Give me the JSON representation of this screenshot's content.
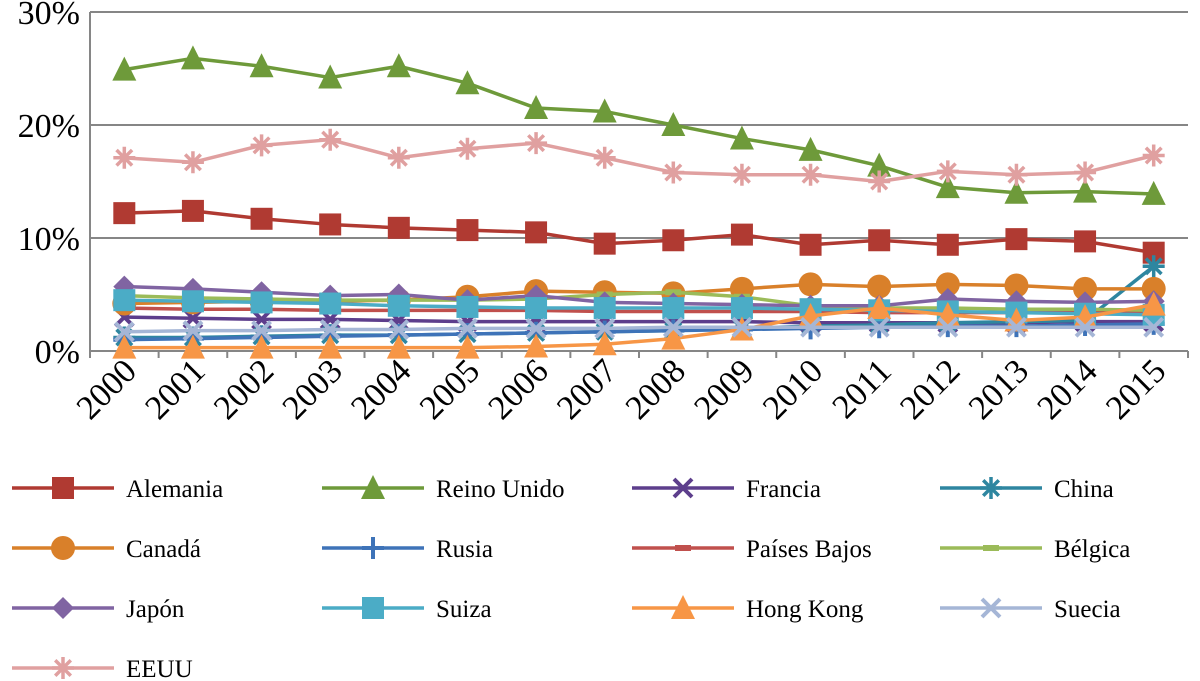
{
  "chart_data": {
    "type": "line",
    "title": "",
    "xlabel": "",
    "ylabel": "",
    "ylim": [
      0,
      30
    ],
    "yticks": [
      0,
      10,
      20,
      30
    ],
    "ytick_labels": [
      "0%",
      "10%",
      "20%",
      "30%"
    ],
    "x": [
      "2000",
      "2001",
      "2002",
      "2003",
      "2004",
      "2005",
      "2006",
      "2007",
      "2008",
      "2009",
      "2010",
      "2011",
      "2012",
      "2013",
      "2014",
      "2015"
    ],
    "grid": "horizontal",
    "legend_position": "bottom",
    "series": [
      {
        "name": "Alemania",
        "color": "#b03a32",
        "marker": "square",
        "values": [
          12.2,
          12.4,
          11.7,
          11.2,
          10.9,
          10.7,
          10.5,
          9.5,
          9.8,
          10.3,
          9.4,
          9.8,
          9.4,
          9.9,
          9.7,
          8.7
        ]
      },
      {
        "name": "Reino Unido",
        "color": "#6e9a3a",
        "marker": "triangle",
        "values": [
          24.9,
          25.9,
          25.2,
          24.2,
          25.2,
          23.7,
          21.5,
          21.2,
          20.0,
          18.8,
          17.8,
          16.4,
          14.5,
          14.0,
          14.1,
          13.9
        ]
      },
      {
        "name": "Francia",
        "color": "#5d3e8c",
        "marker": "x",
        "values": [
          3.0,
          2.9,
          2.8,
          2.8,
          2.7,
          2.6,
          2.6,
          2.6,
          2.6,
          2.6,
          2.5,
          2.5,
          2.5,
          2.5,
          2.6,
          2.6
        ]
      },
      {
        "name": "China",
        "color": "#2e86a0",
        "marker": "star",
        "values": [
          1.2,
          1.2,
          1.3,
          1.4,
          1.4,
          1.5,
          1.6,
          1.7,
          1.8,
          2.0,
          2.2,
          2.3,
          2.5,
          2.6,
          2.7,
          7.5
        ]
      },
      {
        "name": "Canadá",
        "color": "#d9802a",
        "marker": "circle",
        "values": [
          4.2,
          4.3,
          4.4,
          4.4,
          4.5,
          4.8,
          5.3,
          5.2,
          5.1,
          5.5,
          5.9,
          5.7,
          5.9,
          5.8,
          5.5,
          5.5
        ]
      },
      {
        "name": "Rusia",
        "color": "#3e73b8",
        "marker": "plus",
        "values": [
          1.0,
          1.1,
          1.2,
          1.3,
          1.4,
          1.5,
          1.6,
          1.7,
          1.8,
          1.9,
          2.0,
          2.1,
          2.2,
          2.2,
          2.3,
          2.4
        ]
      },
      {
        "name": "Países Bajos",
        "color": "#c0504d",
        "marker": "dash",
        "values": [
          3.8,
          3.7,
          3.7,
          3.6,
          3.6,
          3.6,
          3.6,
          3.5,
          3.5,
          3.5,
          3.5,
          3.4,
          3.4,
          3.4,
          3.4,
          3.4
        ]
      },
      {
        "name": "Bélgica",
        "color": "#9bbb59",
        "marker": "dash",
        "values": [
          4.9,
          4.7,
          4.6,
          4.5,
          4.5,
          4.5,
          4.6,
          5.0,
          5.2,
          4.8,
          4.0,
          3.8,
          3.8,
          3.7,
          3.7,
          3.6
        ]
      },
      {
        "name": "Japón",
        "color": "#8064a2",
        "marker": "diamond",
        "values": [
          5.7,
          5.5,
          5.2,
          4.9,
          5.0,
          4.5,
          4.9,
          4.3,
          4.2,
          4.1,
          4.0,
          4.0,
          4.6,
          4.4,
          4.3,
          4.4
        ]
      },
      {
        "name": "Suiza",
        "color": "#4bacc6",
        "marker": "square",
        "values": [
          4.5,
          4.4,
          4.3,
          4.2,
          4.0,
          3.9,
          3.8,
          3.8,
          3.8,
          3.8,
          3.7,
          3.6,
          3.5,
          3.4,
          3.3,
          3.2
        ]
      },
      {
        "name": "Hong Kong",
        "color": "#f79646",
        "marker": "triangle",
        "values": [
          0.3,
          0.3,
          0.3,
          0.3,
          0.3,
          0.3,
          0.4,
          0.6,
          1.1,
          1.9,
          3.1,
          3.8,
          3.2,
          2.7,
          3.0,
          4.1
        ]
      },
      {
        "name": "Suecia",
        "color": "#a5b6d6",
        "marker": "x",
        "values": [
          1.7,
          1.8,
          1.8,
          1.9,
          1.9,
          2.0,
          2.0,
          2.0,
          2.1,
          2.1,
          2.1,
          2.1,
          2.1,
          2.1,
          2.1,
          2.1
        ]
      },
      {
        "name": "EEUU",
        "color": "#e0a0a0",
        "marker": "star",
        "values": [
          17.1,
          16.7,
          18.2,
          18.7,
          17.1,
          17.9,
          18.4,
          17.1,
          15.8,
          15.6,
          15.6,
          15.0,
          15.9,
          15.6,
          15.8,
          17.3
        ]
      }
    ]
  }
}
